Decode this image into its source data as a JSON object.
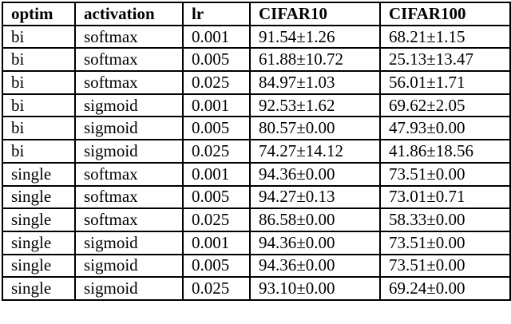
{
  "table": {
    "columns": [
      "optim",
      "activation",
      "lr",
      "CIFAR10",
      "CIFAR100"
    ],
    "rows": [
      [
        "bi",
        "softmax",
        "0.001",
        "91.54±1.26",
        "68.21±1.15"
      ],
      [
        "bi",
        "softmax",
        "0.005",
        "61.88±10.72",
        "25.13±13.47"
      ],
      [
        "bi",
        "softmax",
        "0.025",
        "84.97±1.03",
        "56.01±1.71"
      ],
      [
        "bi",
        "sigmoid",
        "0.001",
        "92.53±1.62",
        "69.62±2.05"
      ],
      [
        "bi",
        "sigmoid",
        "0.005",
        "80.57±0.00",
        "47.93±0.00"
      ],
      [
        "bi",
        "sigmoid",
        "0.025",
        "74.27±14.12",
        "41.86±18.56"
      ],
      [
        "single",
        "softmax",
        "0.001",
        "94.36±0.00",
        "73.51±0.00"
      ],
      [
        "single",
        "softmax",
        "0.005",
        "94.27±0.13",
        "73.01±0.71"
      ],
      [
        "single",
        "softmax",
        "0.025",
        "86.58±0.00",
        "58.33±0.00"
      ],
      [
        "single",
        "sigmoid",
        "0.001",
        "94.36±0.00",
        "73.51±0.00"
      ],
      [
        "single",
        "sigmoid",
        "0.005",
        "94.36±0.00",
        "73.51±0.00"
      ],
      [
        "single",
        "sigmoid",
        "0.025",
        "93.10±0.00",
        "69.24±0.00"
      ]
    ]
  },
  "chart_data": {
    "type": "table",
    "title": "",
    "columns": [
      "optim",
      "activation",
      "lr",
      "CIFAR10",
      "CIFAR100"
    ],
    "rows": [
      {
        "optim": "bi",
        "activation": "softmax",
        "lr": 0.001,
        "CIFAR10_mean": 91.54,
        "CIFAR10_std": 1.26,
        "CIFAR100_mean": 68.21,
        "CIFAR100_std": 1.15
      },
      {
        "optim": "bi",
        "activation": "softmax",
        "lr": 0.005,
        "CIFAR10_mean": 61.88,
        "CIFAR10_std": 10.72,
        "CIFAR100_mean": 25.13,
        "CIFAR100_std": 13.47
      },
      {
        "optim": "bi",
        "activation": "softmax",
        "lr": 0.025,
        "CIFAR10_mean": 84.97,
        "CIFAR10_std": 1.03,
        "CIFAR100_mean": 56.01,
        "CIFAR100_std": 1.71
      },
      {
        "optim": "bi",
        "activation": "sigmoid",
        "lr": 0.001,
        "CIFAR10_mean": 92.53,
        "CIFAR10_std": 1.62,
        "CIFAR100_mean": 69.62,
        "CIFAR100_std": 2.05
      },
      {
        "optim": "bi",
        "activation": "sigmoid",
        "lr": 0.005,
        "CIFAR10_mean": 80.57,
        "CIFAR10_std": 0.0,
        "CIFAR100_mean": 47.93,
        "CIFAR100_std": 0.0
      },
      {
        "optim": "bi",
        "activation": "sigmoid",
        "lr": 0.025,
        "CIFAR10_mean": 74.27,
        "CIFAR10_std": 14.12,
        "CIFAR100_mean": 41.86,
        "CIFAR100_std": 18.56
      },
      {
        "optim": "single",
        "activation": "softmax",
        "lr": 0.001,
        "CIFAR10_mean": 94.36,
        "CIFAR10_std": 0.0,
        "CIFAR100_mean": 73.51,
        "CIFAR100_std": 0.0
      },
      {
        "optim": "single",
        "activation": "softmax",
        "lr": 0.005,
        "CIFAR10_mean": 94.27,
        "CIFAR10_std": 0.13,
        "CIFAR100_mean": 73.01,
        "CIFAR100_std": 0.71
      },
      {
        "optim": "single",
        "activation": "softmax",
        "lr": 0.025,
        "CIFAR10_mean": 86.58,
        "CIFAR10_std": 0.0,
        "CIFAR100_mean": 58.33,
        "CIFAR100_std": 0.0
      },
      {
        "optim": "single",
        "activation": "sigmoid",
        "lr": 0.001,
        "CIFAR10_mean": 94.36,
        "CIFAR10_std": 0.0,
        "CIFAR100_mean": 73.51,
        "CIFAR100_std": 0.0
      },
      {
        "optim": "single",
        "activation": "sigmoid",
        "lr": 0.005,
        "CIFAR10_mean": 94.36,
        "CIFAR10_std": 0.0,
        "CIFAR100_mean": 73.51,
        "CIFAR100_std": 0.0
      },
      {
        "optim": "single",
        "activation": "sigmoid",
        "lr": 0.025,
        "CIFAR10_mean": 93.1,
        "CIFAR10_std": 0.0,
        "CIFAR100_mean": 69.24,
        "CIFAR100_std": 0.0
      }
    ]
  }
}
